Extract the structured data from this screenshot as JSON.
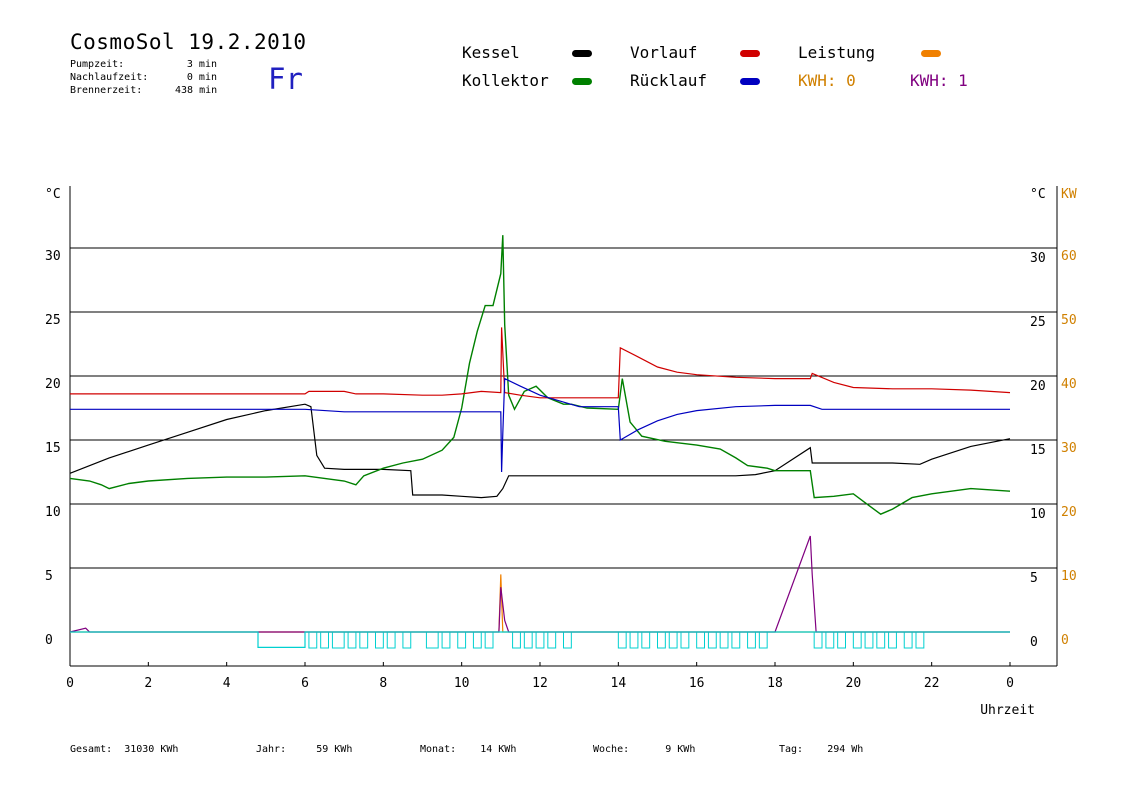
{
  "header": {
    "title": "CosmoSol 19.2.2010",
    "day": "Fr",
    "stats": [
      {
        "label": "Pumpzeit:",
        "value": "3 min"
      },
      {
        "label": "Nachlaufzeit:",
        "value": "0 min"
      },
      {
        "label": "Brennerzeit:",
        "value": "438 min"
      }
    ]
  },
  "legend": {
    "kessel": "Kessel",
    "kollektor": "Kollektor",
    "vorlauf": "Vorlauf",
    "ruecklauf": "Rücklauf",
    "leistung": "Leistung",
    "kwh0": "KWH: 0",
    "kwh1": "KWH: 1"
  },
  "colors": {
    "kessel": "#000000",
    "kollektor": "#008000",
    "vorlauf": "#d00000",
    "ruecklauf": "#0000c0",
    "leistung": "#f08000",
    "kwh0": "#d08000",
    "kwh1": "#800080",
    "pump": "#00d0d0",
    "grid": "#000000"
  },
  "footer": [
    {
      "label": "Gesamt:",
      "value": "31030 KWh"
    },
    {
      "label": "Jahr:",
      "value": "59 KWh"
    },
    {
      "label": "Monat:",
      "value": "14 KWh"
    },
    {
      "label": "Woche:",
      "value": "9 KWh"
    },
    {
      "label": "Tag:",
      "value": "294 Wh"
    }
  ],
  "chart_data": {
    "type": "line",
    "xlabel": "Uhrzeit",
    "ylabel_left": "°C",
    "ylabel_right": "°C",
    "ylabel_right2": "KW",
    "xticks": [
      "0",
      "2",
      "4",
      "6",
      "8",
      "10",
      "12",
      "14",
      "16",
      "18",
      "20",
      "22",
      "0"
    ],
    "yticks_left": [
      "0",
      "5",
      "10",
      "15",
      "20",
      "25",
      "30"
    ],
    "yticks_right": [
      "0",
      "5",
      "10",
      "15",
      "20",
      "25",
      "30"
    ],
    "yticks_kw": [
      "0",
      "10",
      "20",
      "30",
      "40",
      "50",
      "60"
    ],
    "xlim": [
      0,
      24
    ],
    "ylim": [
      0,
      30
    ],
    "grid": true,
    "series": [
      {
        "name": "Kessel",
        "color_key": "kessel",
        "points": [
          [
            0,
            12.4
          ],
          [
            1,
            13.6
          ],
          [
            2,
            14.6
          ],
          [
            3,
            15.6
          ],
          [
            4,
            16.6
          ],
          [
            5,
            17.3
          ],
          [
            6,
            17.8
          ],
          [
            6.15,
            17.6
          ],
          [
            6.3,
            13.8
          ],
          [
            6.5,
            12.8
          ],
          [
            7,
            12.7
          ],
          [
            8,
            12.7
          ],
          [
            8.7,
            12.6
          ],
          [
            8.75,
            10.7
          ],
          [
            9.5,
            10.7
          ],
          [
            10,
            10.6
          ],
          [
            10.5,
            10.5
          ],
          [
            10.9,
            10.6
          ],
          [
            11.05,
            11.2
          ],
          [
            11.2,
            12.2
          ],
          [
            12,
            12.2
          ],
          [
            13,
            12.2
          ],
          [
            14,
            12.2
          ],
          [
            15,
            12.2
          ],
          [
            16,
            12.2
          ],
          [
            17,
            12.2
          ],
          [
            17.5,
            12.3
          ],
          [
            18,
            12.6
          ],
          [
            18.9,
            14.4
          ],
          [
            18.95,
            13.2
          ],
          [
            20,
            13.2
          ],
          [
            21,
            13.2
          ],
          [
            21.7,
            13.1
          ],
          [
            22,
            13.5
          ],
          [
            23,
            14.5
          ],
          [
            24,
            15.1
          ]
        ]
      },
      {
        "name": "Kollektor",
        "color_key": "kollektor",
        "points": [
          [
            0,
            12.0
          ],
          [
            0.5,
            11.8
          ],
          [
            0.8,
            11.5
          ],
          [
            1,
            11.2
          ],
          [
            1.5,
            11.6
          ],
          [
            2,
            11.8
          ],
          [
            3,
            12.0
          ],
          [
            4,
            12.1
          ],
          [
            5,
            12.1
          ],
          [
            6,
            12.2
          ],
          [
            6.5,
            12.0
          ],
          [
            7,
            11.8
          ],
          [
            7.3,
            11.5
          ],
          [
            7.5,
            12.2
          ],
          [
            8,
            12.8
          ],
          [
            8.5,
            13.2
          ],
          [
            9,
            13.5
          ],
          [
            9.5,
            14.2
          ],
          [
            9.8,
            15.2
          ],
          [
            10,
            17.5
          ],
          [
            10.2,
            21
          ],
          [
            10.4,
            23.5
          ],
          [
            10.6,
            25.5
          ],
          [
            10.8,
            25.5
          ],
          [
            11,
            28
          ],
          [
            11.05,
            31.0
          ],
          [
            11.1,
            24
          ],
          [
            11.2,
            18.5
          ],
          [
            11.35,
            17.4
          ],
          [
            11.6,
            18.8
          ],
          [
            11.9,
            19.2
          ],
          [
            12.2,
            18.3
          ],
          [
            12.6,
            17.8
          ],
          [
            12.8,
            17.8
          ],
          [
            13.2,
            17.5
          ],
          [
            14,
            17.4
          ],
          [
            14.1,
            19.8
          ],
          [
            14.3,
            16.4
          ],
          [
            14.6,
            15.3
          ],
          [
            15.2,
            14.9
          ],
          [
            16,
            14.6
          ],
          [
            16.6,
            14.3
          ],
          [
            17,
            13.6
          ],
          [
            17.3,
            13.0
          ],
          [
            17.8,
            12.8
          ],
          [
            18,
            12.6
          ],
          [
            18.9,
            12.6
          ],
          [
            19,
            10.5
          ],
          [
            19.5,
            10.6
          ],
          [
            20,
            10.8
          ],
          [
            20.3,
            10.1
          ],
          [
            20.7,
            9.2
          ],
          [
            21,
            9.6
          ],
          [
            21.5,
            10.5
          ],
          [
            22,
            10.8
          ],
          [
            23,
            11.2
          ],
          [
            24,
            11.0
          ]
        ]
      },
      {
        "name": "Vorlauf",
        "color_key": "vorlauf",
        "points": [
          [
            0,
            18.6
          ],
          [
            2,
            18.6
          ],
          [
            4,
            18.6
          ],
          [
            6,
            18.6
          ],
          [
            6.1,
            18.8
          ],
          [
            7,
            18.8
          ],
          [
            7.3,
            18.6
          ],
          [
            8,
            18.6
          ],
          [
            9,
            18.5
          ],
          [
            9.5,
            18.5
          ],
          [
            10,
            18.6
          ],
          [
            10.5,
            18.8
          ],
          [
            11,
            18.7
          ],
          [
            11.02,
            23.8
          ],
          [
            11.1,
            18.7
          ],
          [
            11.5,
            18.5
          ],
          [
            12,
            18.3
          ],
          [
            13,
            18.3
          ],
          [
            14,
            18.3
          ],
          [
            14.05,
            22.2
          ],
          [
            14.5,
            21.5
          ],
          [
            15,
            20.7
          ],
          [
            15.5,
            20.3
          ],
          [
            16,
            20.1
          ],
          [
            17,
            19.9
          ],
          [
            18,
            19.8
          ],
          [
            18.9,
            19.8
          ],
          [
            18.95,
            20.2
          ],
          [
            19.5,
            19.5
          ],
          [
            20,
            19.1
          ],
          [
            21,
            19.0
          ],
          [
            22,
            19.0
          ],
          [
            23,
            18.9
          ],
          [
            24,
            18.7
          ]
        ]
      },
      {
        "name": "Rücklauf",
        "color_key": "ruecklauf",
        "points": [
          [
            0,
            17.4
          ],
          [
            2,
            17.4
          ],
          [
            4,
            17.4
          ],
          [
            6,
            17.4
          ],
          [
            7,
            17.2
          ],
          [
            8,
            17.2
          ],
          [
            9,
            17.2
          ],
          [
            10,
            17.2
          ],
          [
            11,
            17.2
          ],
          [
            11.02,
            12.5
          ],
          [
            11.05,
            15.5
          ],
          [
            11.1,
            19.8
          ],
          [
            11.5,
            19.2
          ],
          [
            12,
            18.5
          ],
          [
            13,
            17.6
          ],
          [
            14,
            17.6
          ],
          [
            14.05,
            15.0
          ],
          [
            14.5,
            15.8
          ],
          [
            15,
            16.5
          ],
          [
            15.5,
            17.0
          ],
          [
            16,
            17.3
          ],
          [
            17,
            17.6
          ],
          [
            18,
            17.7
          ],
          [
            18.9,
            17.7
          ],
          [
            19.2,
            17.4
          ],
          [
            20,
            17.4
          ],
          [
            21,
            17.4
          ],
          [
            22,
            17.4
          ],
          [
            23,
            17.4
          ],
          [
            24,
            17.4
          ]
        ]
      },
      {
        "name": "Leistung",
        "color_key": "leistung",
        "points": [
          [
            0,
            0
          ],
          [
            10.95,
            0
          ],
          [
            11.0,
            4.5
          ],
          [
            11.05,
            0
          ],
          [
            24,
            0
          ]
        ]
      },
      {
        "name": "KWH: 1",
        "color_key": "kwh1",
        "points": [
          [
            0,
            0
          ],
          [
            0.4,
            0.3
          ],
          [
            0.5,
            0
          ],
          [
            5,
            0
          ],
          [
            6,
            0
          ],
          [
            9,
            0
          ],
          [
            10.95,
            0
          ],
          [
            11.0,
            3.5
          ],
          [
            11.1,
            0.9
          ],
          [
            11.2,
            0
          ],
          [
            18,
            0
          ],
          [
            18.9,
            7.5
          ],
          [
            18.95,
            4.5
          ],
          [
            19.05,
            0
          ],
          [
            24,
            0
          ]
        ]
      },
      {
        "name": "Pumpe",
        "color_key": "pump",
        "points": [
          [
            0,
            0
          ],
          [
            4.8,
            0
          ],
          [
            4.8,
            -1.2
          ],
          [
            6,
            -1.2
          ],
          [
            6,
            0
          ],
          [
            24,
            0
          ]
        ]
      }
    ]
  }
}
